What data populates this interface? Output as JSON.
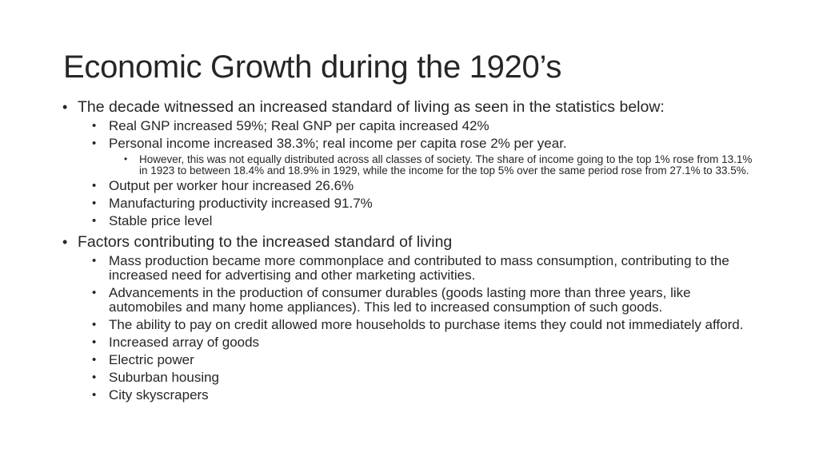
{
  "slide": {
    "title": "Economic Growth during the 1920’s",
    "bullet_char": "•",
    "sections": [
      {
        "text": "The decade witnessed an increased standard of living as seen in the statistics below:",
        "items": [
          {
            "text": "Real GNP increased 59%; Real GNP per capita increased 42%"
          },
          {
            "text": "Personal income increased 38.3%; real income per capita rose 2% per year.",
            "subitems": [
              "However, this was not equally distributed across all classes of society.  The share of income going to the top 1% rose from 13.1% in 1923 to between 18.4% and 18.9% in 1929, while the income for the top 5% over the same period rose from 27.1% to 33.5%."
            ]
          },
          {
            "text": "Output per worker hour increased 26.6%"
          },
          {
            "text": "Manufacturing productivity increased 91.7%"
          },
          {
            "text": "Stable price level"
          }
        ]
      },
      {
        "text": "Factors contributing to the increased standard of living",
        "items": [
          {
            "text": "Mass production became more commonplace and contributed to mass consumption, contributing to the increased need for advertising and other marketing activities."
          },
          {
            "text": "Advancements in the production of consumer durables (goods lasting more than three years, like automobiles and many home appliances).  This led to increased consumption of such goods."
          },
          {
            "text": "The ability to pay on credit allowed more households to purchase items they could not immediately afford."
          },
          {
            "text": "Increased array of goods"
          },
          {
            "text": "Electric power"
          },
          {
            "text": "Suburban housing"
          },
          {
            "text": "City skyscrapers"
          }
        ]
      }
    ]
  }
}
